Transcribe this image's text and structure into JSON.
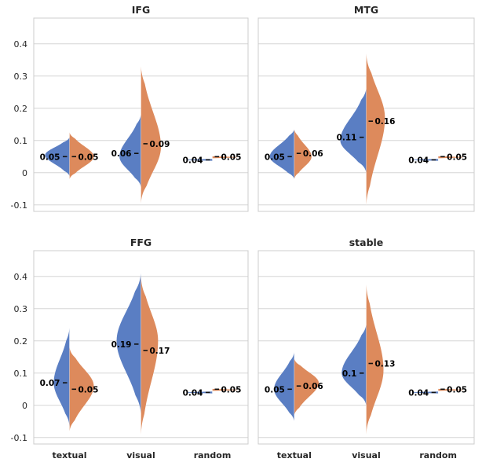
{
  "chart_data": {
    "type": "violin",
    "layout": "2x2",
    "categories": [
      "textual",
      "visual",
      "random"
    ],
    "colors": {
      "left": "#5a7ec3",
      "right": "#dd8a5c"
    },
    "yticks": [
      -0.1,
      0.0,
      0.1,
      0.2,
      0.3,
      0.4
    ],
    "panels": [
      {
        "title": "IFG",
        "ylim": [
          -0.12,
          0.48
        ],
        "show_xticks": false,
        "show_yticks": true,
        "violins": [
          {
            "category": "textual",
            "left": {
              "mean": 0.05,
              "label": "0.05",
              "min": -0.01,
              "max": 0.11,
              "mode": 0.055,
              "wmax": 0.85
            },
            "right": {
              "mean": 0.05,
              "label": "0.05",
              "min": -0.02,
              "max": 0.125,
              "mode": 0.05,
              "wmax": 0.85
            }
          },
          {
            "category": "visual",
            "left": {
              "mean": 0.06,
              "label": "0.06",
              "min": -0.045,
              "max": 0.18,
              "mode": 0.05,
              "wmax": 0.75
            },
            "right": {
              "mean": 0.09,
              "label": "0.09",
              "min": -0.095,
              "max": 0.33,
              "mode": 0.08,
              "wmax": 0.7
            }
          },
          {
            "category": "random",
            "left": {
              "mean": 0.04,
              "label": "0.04",
              "min": 0.038,
              "max": 0.042,
              "mode": 0.04,
              "wmax": 0.85
            },
            "right": {
              "mean": 0.05,
              "label": "0.05",
              "min": 0.044,
              "max": 0.052,
              "mode": 0.047,
              "wmax": 0.85
            }
          }
        ]
      },
      {
        "title": "MTG",
        "ylim": [
          -0.12,
          0.48
        ],
        "show_xticks": false,
        "show_yticks": false,
        "violins": [
          {
            "category": "textual",
            "left": {
              "mean": 0.05,
              "label": "0.05",
              "min": -0.02,
              "max": 0.135,
              "mode": 0.05,
              "wmax": 0.85
            },
            "right": {
              "mean": 0.06,
              "label": "0.06",
              "min": -0.02,
              "max": 0.135,
              "mode": 0.05,
              "wmax": 0.6
            }
          },
          {
            "category": "visual",
            "left": {
              "mean": 0.11,
              "label": "0.11",
              "min": 0.0,
              "max": 0.26,
              "mode": 0.1,
              "wmax": 0.9
            },
            "right": {
              "mean": 0.16,
              "label": "0.16",
              "min": -0.1,
              "max": 0.37,
              "mode": 0.17,
              "wmax": 0.65
            }
          },
          {
            "category": "random",
            "left": {
              "mean": 0.04,
              "label": "0.04",
              "min": 0.038,
              "max": 0.042,
              "mode": 0.04,
              "wmax": 0.85
            },
            "right": {
              "mean": 0.05,
              "label": "0.05",
              "min": 0.044,
              "max": 0.052,
              "mode": 0.047,
              "wmax": 0.85
            }
          }
        ]
      },
      {
        "title": "FFG",
        "ylim": [
          -0.12,
          0.48
        ],
        "show_xticks": true,
        "show_yticks": true,
        "violins": [
          {
            "category": "textual",
            "left": {
              "mean": 0.07,
              "label": "0.07",
              "min": -0.065,
              "max": 0.24,
              "mode": 0.07,
              "wmax": 0.55
            },
            "right": {
              "mean": 0.05,
              "label": "0.05",
              "min": -0.08,
              "max": 0.18,
              "mode": 0.06,
              "wmax": 0.85
            }
          },
          {
            "category": "visual",
            "left": {
              "mean": 0.19,
              "label": "0.19",
              "min": -0.025,
              "max": 0.41,
              "mode": 0.2,
              "wmax": 0.85
            },
            "right": {
              "mean": 0.17,
              "label": "0.17",
              "min": -0.09,
              "max": 0.4,
              "mode": 0.2,
              "wmax": 0.6
            }
          },
          {
            "category": "random",
            "left": {
              "mean": 0.04,
              "label": "0.04",
              "min": 0.038,
              "max": 0.042,
              "mode": 0.04,
              "wmax": 0.85
            },
            "right": {
              "mean": 0.05,
              "label": "0.05",
              "min": 0.044,
              "max": 0.052,
              "mode": 0.047,
              "wmax": 0.85
            }
          }
        ]
      },
      {
        "title": "stable",
        "ylim": [
          -0.12,
          0.48
        ],
        "show_xticks": true,
        "show_yticks": false,
        "violins": [
          {
            "category": "textual",
            "left": {
              "mean": 0.05,
              "label": "0.05",
              "min": -0.05,
              "max": 0.165,
              "mode": 0.05,
              "wmax": 0.7
            },
            "right": {
              "mean": 0.06,
              "label": "0.06",
              "min": -0.03,
              "max": 0.145,
              "mode": 0.07,
              "wmax": 0.85
            }
          },
          {
            "category": "visual",
            "left": {
              "mean": 0.1,
              "label": "0.1",
              "min": 0.0,
              "max": 0.25,
              "mode": 0.1,
              "wmax": 0.85
            },
            "right": {
              "mean": 0.13,
              "label": "0.13",
              "min": -0.09,
              "max": 0.375,
              "mode": 0.11,
              "wmax": 0.6
            }
          },
          {
            "category": "random",
            "left": {
              "mean": 0.04,
              "label": "0.04",
              "min": 0.038,
              "max": 0.042,
              "mode": 0.04,
              "wmax": 0.85
            },
            "right": {
              "mean": 0.05,
              "label": "0.05",
              "min": 0.044,
              "max": 0.052,
              "mode": 0.047,
              "wmax": 0.85
            }
          }
        ]
      }
    ]
  }
}
